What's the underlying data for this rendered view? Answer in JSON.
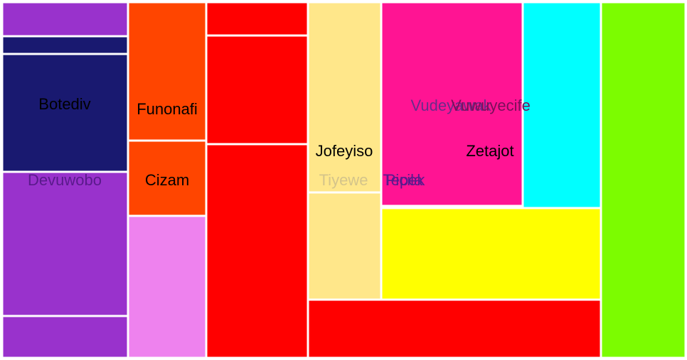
{
  "chart_data": {
    "type": "treemap",
    "title": "",
    "labels": [
      {
        "text": "Botediv",
        "color": "#000000"
      },
      {
        "text": "Devuwobo",
        "color": "#5a1a8c"
      },
      {
        "text": "Funonafi",
        "color": "#000000"
      },
      {
        "text": "Cizam",
        "color": "#000000"
      },
      {
        "text": "Jofeyiso",
        "color": "#000000"
      },
      {
        "text": "Tiyewe",
        "color": "#d4c48a"
      },
      {
        "text": "Picila",
        "color": "#5a1a8c"
      },
      {
        "text": "Tepek",
        "color": "#5a1a8c"
      },
      {
        "text": "Vudeyawak",
        "color": "#6b2a8a"
      },
      {
        "text": "Vuwuyecife",
        "color": "#7a0f5a"
      },
      {
        "text": "Zetajot",
        "color": "#000000"
      }
    ],
    "nodes": [
      {
        "color": "#9932cc",
        "value": 3.67
      },
      {
        "color": "#191970",
        "value": 1.75
      },
      {
        "color": "#191970",
        "value": 11.1
      },
      {
        "color": "#9932cc",
        "value": 14.8
      },
      {
        "color": "#9932cc",
        "value": 4.24
      },
      {
        "color": "#ff4500",
        "value": 10.9
      },
      {
        "color": "#ff4500",
        "value": 7.66
      },
      {
        "color": "#ee82ee",
        "value": 14.5
      },
      {
        "color": "#ff0000",
        "value": 3.36
      },
      {
        "color": "#ff0000",
        "value": 10.9
      },
      {
        "color": "#ff0000",
        "value": 21.5
      },
      {
        "color": "#ffe78a",
        "value": 19.1
      },
      {
        "color": "#ffe78a",
        "value": 10.7
      },
      {
        "color": "#ff1493",
        "value": 39.4
      },
      {
        "color": "#00ffff",
        "value": 21.7
      },
      {
        "color": "#ffff00",
        "value": 22.7
      },
      {
        "color": "#ff0000",
        "value": 22.5
      },
      {
        "color": "#7cfc00",
        "value": 83.2
      }
    ]
  }
}
